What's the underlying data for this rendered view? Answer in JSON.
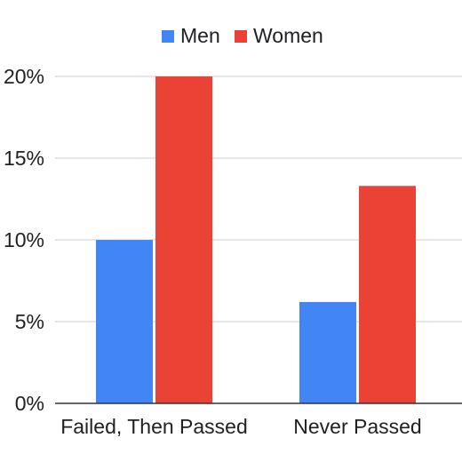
{
  "chart_data": {
    "type": "bar",
    "categories": [
      "Failed, Then Passed",
      "Never Passed"
    ],
    "series": [
      {
        "name": "Men",
        "color": "#4285f4",
        "values": [
          10,
          6.2
        ]
      },
      {
        "name": "Women",
        "color": "#ea4335",
        "values": [
          20,
          13.3
        ]
      }
    ],
    "yticks": [
      "0%",
      "5%",
      "10%",
      "15%",
      "20%"
    ],
    "ylim": [
      0,
      20
    ],
    "legend_position": "top-center",
    "grid": true
  }
}
